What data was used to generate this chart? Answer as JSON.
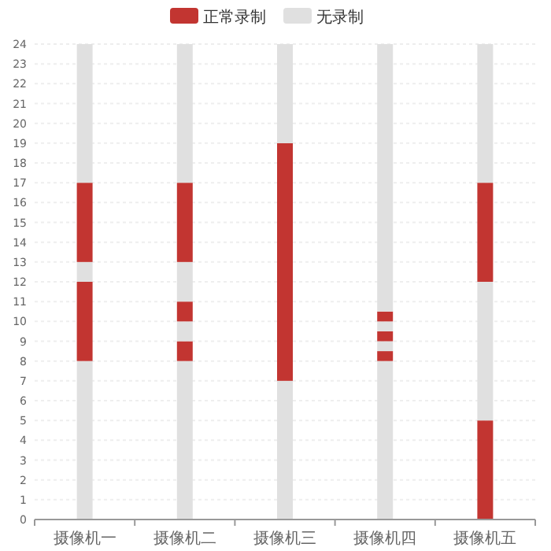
{
  "chart_data": {
    "type": "bar",
    "stacked": true,
    "categories": [
      "摄像机一",
      "摄像机二",
      "摄像机三",
      "摄像机四",
      "摄像机五"
    ],
    "series": [
      {
        "name": "无录制",
        "color": "#e0e0e0",
        "values": [
          8,
          8,
          7,
          8,
          0
        ]
      },
      {
        "name": "正常录制",
        "color": "#c23531",
        "values": [
          4,
          1,
          12,
          0.5,
          5
        ]
      },
      {
        "color": "#e0e0e0",
        "values": [
          1,
          1,
          5,
          0.5,
          7
        ]
      },
      {
        "color": "#c23531",
        "values": [
          4,
          1,
          0,
          0.5,
          5
        ]
      },
      {
        "color": "#e0e0e0",
        "values": [
          7,
          2,
          0,
          0.5,
          7
        ]
      },
      {
        "color": "#c23531",
        "values": [
          0,
          4,
          0,
          0.5,
          0
        ]
      },
      {
        "color": "#e0e0e0",
        "values": [
          0,
          7,
          0,
          13.5,
          0
        ]
      }
    ],
    "ylim": [
      0,
      24
    ],
    "yticks": [
      0,
      1,
      2,
      3,
      4,
      5,
      6,
      7,
      8,
      9,
      10,
      11,
      12,
      13,
      14,
      15,
      16,
      17,
      18,
      19,
      20,
      21,
      22,
      23,
      24
    ],
    "grid": "y",
    "legend": "top"
  }
}
